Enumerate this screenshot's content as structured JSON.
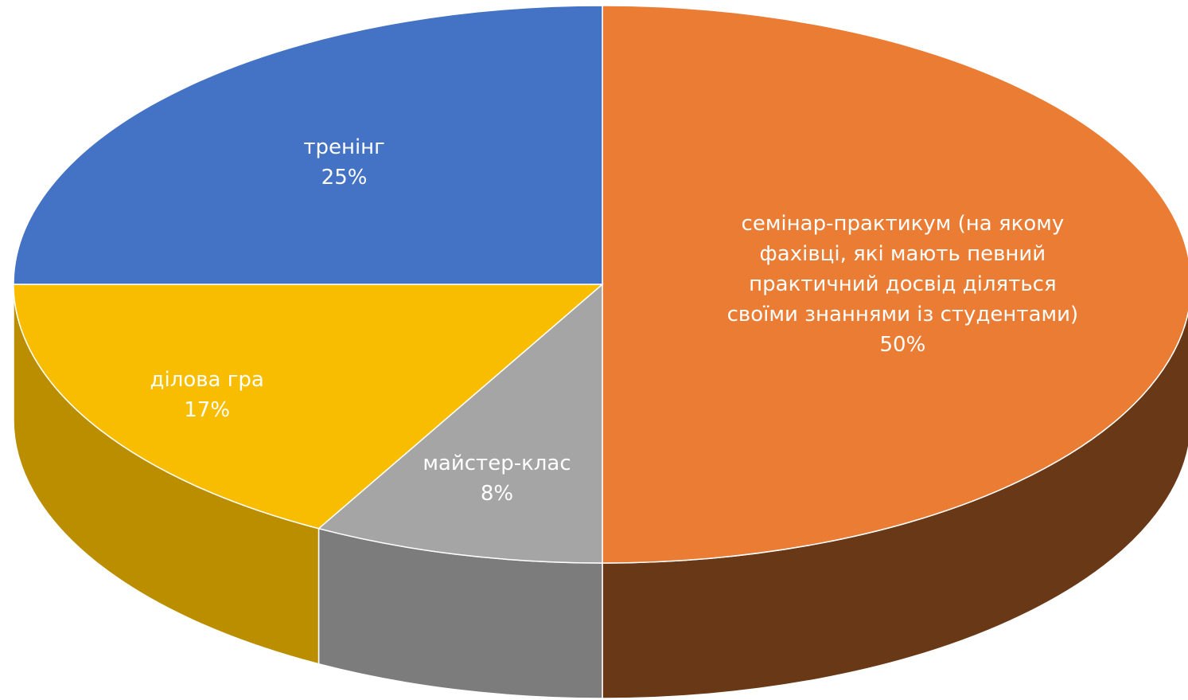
{
  "chart_data": {
    "type": "pie",
    "categories": [
      "семінар-практикум (на якому фахівці, які мають певний практичний досвід діляться своїми знаннями із студентами)",
      "майстер-клас",
      "ділова гра",
      "тренінг"
    ],
    "values": [
      50,
      8,
      17,
      25
    ],
    "value_labels": [
      "50%",
      "8%",
      "17%",
      "25%"
    ],
    "colors": [
      "#ea7c34",
      "#a5a5a5",
      "#f9bd00",
      "#4472c4"
    ]
  }
}
